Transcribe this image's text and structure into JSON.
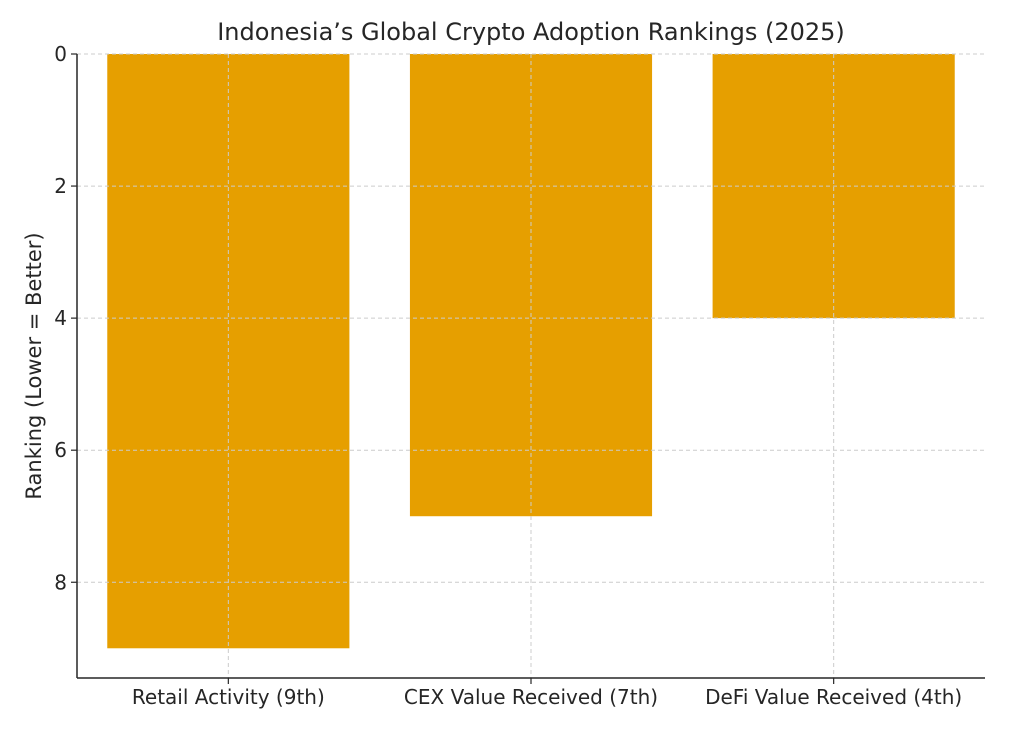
{
  "chart_data": {
    "type": "bar",
    "title": "Indonesia’s Global Crypto Adoption Rankings (2025)",
    "xlabel": "",
    "ylabel": "Ranking (Lower = Better)",
    "categories": [
      "Retail Activity (9th)",
      "CEX Value Received (7th)",
      "DeFi Value Received (4th)"
    ],
    "values": [
      9,
      7,
      4
    ],
    "ylim": [
      9.45,
      0
    ],
    "y_inverted": true,
    "yticks": [
      0,
      2,
      4,
      6,
      8
    ],
    "grid": true,
    "bar_color": "#E69F00"
  }
}
